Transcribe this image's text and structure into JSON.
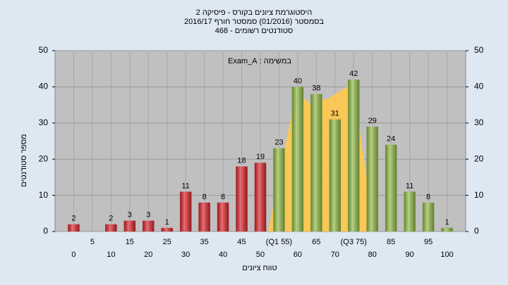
{
  "chart_data": {
    "type": "bar",
    "title": "היסטוגרמת ציונים בקורס - פיסיקה 2",
    "subtitle": "בסמסטר (01/2016)  סמסטר חורף 2016/17",
    "subtitle2": "סטודנטים רשומים - 468",
    "annotation": "במשימה : Exam_A",
    "y_label": "מספר סטודנטים",
    "x_label": "טווח ציונים",
    "categories": [
      "0",
      "5",
      "10",
      "15",
      "20",
      "25",
      "30",
      "35",
      "40",
      "45",
      "50",
      "(Q1 55)",
      "60",
      "65",
      "70",
      "(Q3 75)",
      "80",
      "85",
      "90",
      "95",
      "100"
    ],
    "values": [
      2,
      null,
      2,
      3,
      3,
      1,
      11,
      8,
      8,
      18,
      19,
      23,
      40,
      38,
      31,
      42,
      29,
      24,
      11,
      8,
      1
    ],
    "colors": [
      "#d8232a",
      "#d8232a",
      "#d8232a",
      "#d8232a",
      "#d8232a",
      "#d8232a",
      "#d8232a",
      "#d8232a",
      "#d8232a",
      "#d8232a",
      "#d8232a",
      "#8fb843",
      "#8fb843",
      "#8fb843",
      "#8fb843",
      "#8fb843",
      "#8fb843",
      "#8fb843",
      "#8fb843",
      "#8fb843",
      "#8fb843"
    ],
    "ylim": [
      0,
      50
    ],
    "yticks": [
      0,
      10,
      20,
      30,
      40,
      50
    ],
    "y2lim": [
      0,
      50
    ],
    "y2ticks": [
      0,
      10,
      20,
      30,
      40,
      50
    ],
    "grid": true
  }
}
